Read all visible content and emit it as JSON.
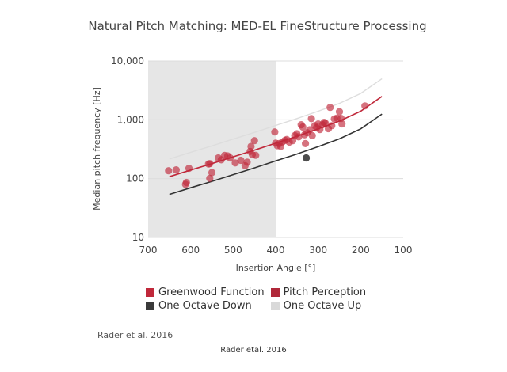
{
  "chart_data": {
    "type": "scatter",
    "title": "Natural Pitch Matching: MED-EL FineStructure Processing",
    "xlabel": "Insertion Angle [°]",
    "ylabel": "Median pitch frequency [Hz]",
    "xlim": [
      700,
      100
    ],
    "ylim": [
      10,
      10000
    ],
    "yscale": "log",
    "x_reversed": true,
    "x_ticks": [
      700,
      600,
      500,
      400,
      300,
      200,
      100
    ],
    "x_tick_labels": [
      "700",
      "600",
      "500",
      "400",
      "300",
      "200",
      "100"
    ],
    "y_ticks": [
      10,
      100,
      1000,
      10000
    ],
    "y_tick_labels": [
      "10",
      "100",
      "1,000",
      "10,000"
    ],
    "shaded_region": {
      "x_from": 700,
      "x_to": 400,
      "color": "#e6e6e6"
    },
    "grid": "horizontal",
    "legend_position": "bottom",
    "series": [
      {
        "name": "Greenwood Function",
        "kind": "line",
        "color": "#c0283a",
        "x": [
          650,
          600,
          550,
          500,
          450,
          400,
          350,
          300,
          250,
          200,
          150
        ],
        "y": [
          108,
          140,
          180,
          235,
          305,
          400,
          525,
          700,
          950,
          1400,
          2500
        ]
      },
      {
        "name": "Pitch Perception",
        "kind": "scatter",
        "color": "#c0283a",
        "opacity": 0.65,
        "points": [
          {
            "x": 652,
            "y": 136
          },
          {
            "x": 634,
            "y": 141
          },
          {
            "x": 604,
            "y": 150
          },
          {
            "x": 610,
            "y": 86
          },
          {
            "x": 612,
            "y": 80
          },
          {
            "x": 558,
            "y": 178
          },
          {
            "x": 555,
            "y": 180
          },
          {
            "x": 550,
            "y": 127
          },
          {
            "x": 555,
            "y": 101
          },
          {
            "x": 535,
            "y": 225
          },
          {
            "x": 528,
            "y": 209
          },
          {
            "x": 520,
            "y": 248
          },
          {
            "x": 513,
            "y": 243
          },
          {
            "x": 507,
            "y": 225
          },
          {
            "x": 495,
            "y": 185
          },
          {
            "x": 482,
            "y": 205
          },
          {
            "x": 472,
            "y": 166
          },
          {
            "x": 467,
            "y": 190
          },
          {
            "x": 460,
            "y": 290
          },
          {
            "x": 458,
            "y": 352
          },
          {
            "x": 455,
            "y": 255
          },
          {
            "x": 450,
            "y": 442
          },
          {
            "x": 447,
            "y": 249
          },
          {
            "x": 402,
            "y": 621
          },
          {
            "x": 400,
            "y": 401
          },
          {
            "x": 396,
            "y": 363
          },
          {
            "x": 392,
            "y": 395
          },
          {
            "x": 388,
            "y": 352
          },
          {
            "x": 384,
            "y": 420
          },
          {
            "x": 378,
            "y": 446
          },
          {
            "x": 374,
            "y": 463
          },
          {
            "x": 368,
            "y": 418
          },
          {
            "x": 360,
            "y": 441
          },
          {
            "x": 355,
            "y": 539
          },
          {
            "x": 350,
            "y": 579
          },
          {
            "x": 346,
            "y": 513
          },
          {
            "x": 340,
            "y": 823
          },
          {
            "x": 336,
            "y": 752
          },
          {
            "x": 332,
            "y": 556
          },
          {
            "x": 330,
            "y": 394
          },
          {
            "x": 326,
            "y": 605
          },
          {
            "x": 320,
            "y": 676
          },
          {
            "x": 316,
            "y": 1047
          },
          {
            "x": 314,
            "y": 537
          },
          {
            "x": 308,
            "y": 795
          },
          {
            "x": 304,
            "y": 730
          },
          {
            "x": 300,
            "y": 849
          },
          {
            "x": 296,
            "y": 683
          },
          {
            "x": 290,
            "y": 823
          },
          {
            "x": 286,
            "y": 903
          },
          {
            "x": 283,
            "y": 872
          },
          {
            "x": 276,
            "y": 708
          },
          {
            "x": 272,
            "y": 1622
          },
          {
            "x": 268,
            "y": 794
          },
          {
            "x": 262,
            "y": 1036
          },
          {
            "x": 256,
            "y": 1067
          },
          {
            "x": 250,
            "y": 1371
          },
          {
            "x": 246,
            "y": 1056
          },
          {
            "x": 244,
            "y": 853
          },
          {
            "x": 190,
            "y": 1721
          }
        ]
      },
      {
        "name": "One Octave Down",
        "kind": "line",
        "color": "#333333",
        "x": [
          650,
          600,
          550,
          500,
          450,
          400,
          350,
          300,
          250,
          200,
          150
        ],
        "y": [
          54,
          70,
          90,
          117,
          152,
          200,
          262,
          350,
          475,
          700,
          1250
        ],
        "extra_points": [
          {
            "x": 328,
            "y": 225
          }
        ]
      },
      {
        "name": "One Octave Up",
        "kind": "line",
        "color": "#dddddd",
        "x": [
          650,
          600,
          550,
          500,
          450,
          400,
          350,
          300,
          250,
          200,
          150
        ],
        "y": [
          216,
          280,
          360,
          470,
          610,
          800,
          1050,
          1400,
          1900,
          2800,
          5000
        ]
      }
    ]
  },
  "legend": {
    "items": [
      {
        "label": "Greenwood Function",
        "color": "#c0283a"
      },
      {
        "label": "Pitch Perception",
        "color": "#b0283a"
      },
      {
        "label": "One Octave Down",
        "color": "#3a3a3a"
      },
      {
        "label": "One Octave Up",
        "color": "#d9d9d9"
      }
    ]
  },
  "source_note": "Rader et al. 2016",
  "credit": "Rader etal. 2016"
}
